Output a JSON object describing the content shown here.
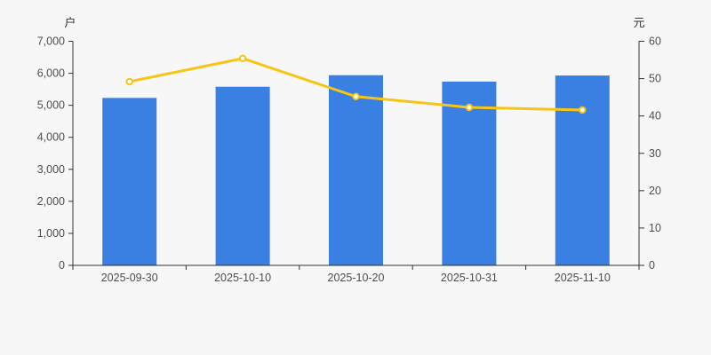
{
  "chart_data": {
    "type": "bar+line dual-axis",
    "categories": [
      "2025-09-30",
      "2025-10-10",
      "2025-10-20",
      "2025-10-31",
      "2025-11-10"
    ],
    "series": [
      {
        "type": "bar",
        "y_axis": "left",
        "values": [
          5230,
          5580,
          5940,
          5740,
          5930
        ]
      },
      {
        "type": "line",
        "y_axis": "right",
        "values": [
          49.2,
          55.4,
          45.2,
          42.3,
          41.6
        ]
      }
    ],
    "left_axis": {
      "label": "户",
      "min": 0,
      "max": 7000,
      "tick_step": 1000,
      "tick_labels": [
        "0",
        "1,000",
        "2,000",
        "3,000",
        "4,000",
        "5,000",
        "6,000",
        "7,000"
      ]
    },
    "right_axis": {
      "label": "元",
      "min": 0,
      "max": 60,
      "tick_step": 10,
      "tick_labels": [
        "0",
        "10",
        "20",
        "30",
        "40",
        "50",
        "60"
      ]
    },
    "grid": false,
    "legend": false,
    "title": ""
  },
  "colors": {
    "background": "#f7f7f7",
    "bar": "#3a7fe2",
    "line": "#f8c514",
    "marker_fill": "#ffffff",
    "axis_line": "#333333",
    "tick_text": "#4d4d4d"
  }
}
